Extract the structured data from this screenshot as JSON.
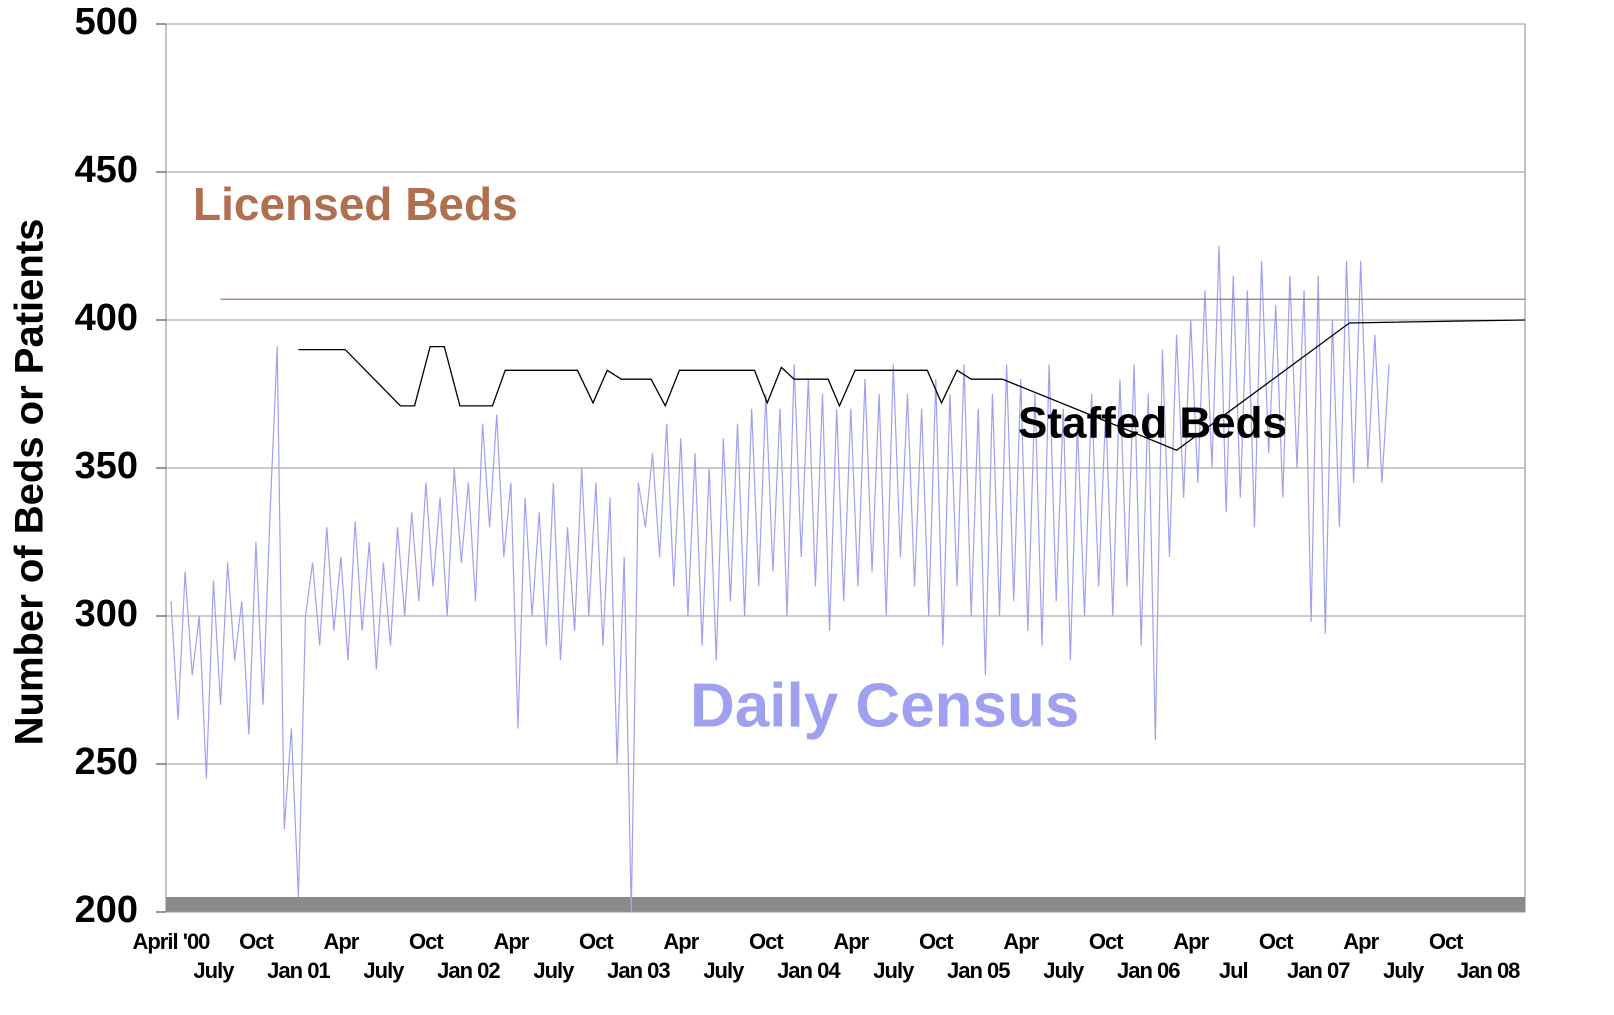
{
  "chart_data": {
    "type": "line",
    "ylabel": "Number of Beds or Patients",
    "xlim": [
      -0.35,
      95.6
    ],
    "ylim": [
      200,
      500
    ],
    "yticks": [
      200,
      250,
      300,
      350,
      400,
      450,
      500
    ],
    "grid": true,
    "xticks": [
      {
        "value": 0,
        "label": "April '00"
      },
      {
        "value": 3,
        "label": "July"
      },
      {
        "value": 6,
        "label": "Oct"
      },
      {
        "value": 9,
        "label": "Jan 01"
      },
      {
        "value": 12,
        "label": "Apr"
      },
      {
        "value": 15,
        "label": "July"
      },
      {
        "value": 18,
        "label": "Oct"
      },
      {
        "value": 21,
        "label": "Jan 02"
      },
      {
        "value": 24,
        "label": "Apr"
      },
      {
        "value": 27,
        "label": "July"
      },
      {
        "value": 30,
        "label": "Oct"
      },
      {
        "value": 33,
        "label": "Jan 03"
      },
      {
        "value": 36,
        "label": "Apr"
      },
      {
        "value": 39,
        "label": "July"
      },
      {
        "value": 42,
        "label": "Oct"
      },
      {
        "value": 45,
        "label": "Jan 04"
      },
      {
        "value": 48,
        "label": "Apr"
      },
      {
        "value": 51,
        "label": "July"
      },
      {
        "value": 54,
        "label": "Oct"
      },
      {
        "value": 57,
        "label": "Jan 05"
      },
      {
        "value": 60,
        "label": "Apr"
      },
      {
        "value": 63,
        "label": "July"
      },
      {
        "value": 66,
        "label": "Oct"
      },
      {
        "value": 69,
        "label": "Jan 06"
      },
      {
        "value": 72,
        "label": "Apr"
      },
      {
        "value": 75,
        "label": "Jul"
      },
      {
        "value": 78,
        "label": "Oct"
      },
      {
        "value": 81,
        "label": "Jan 07"
      },
      {
        "value": 84,
        "label": "Apr"
      },
      {
        "value": 87,
        "label": "July"
      },
      {
        "value": 90,
        "label": "Oct"
      },
      {
        "value": 93,
        "label": "Jan 08"
      }
    ],
    "series": [
      {
        "name": "Licensed Beds",
        "color": "#b07050",
        "x": [
          3.5,
          95.6
        ],
        "values": [
          407,
          407
        ]
      },
      {
        "name": "Staffed Beds",
        "color": "#000000",
        "x": [
          9.0,
          12.3,
          16.2,
          17.2,
          18.3,
          19.3,
          20.4,
          22.7,
          23.6,
          28.7,
          29.8,
          30.8,
          31.8,
          33.9,
          34.9,
          35.9,
          41.2,
          42.1,
          43.1,
          44.0,
          46.4,
          47.2,
          48.3,
          53.4,
          54.4,
          55.5,
          56.5,
          58.7,
          64.9,
          71.0,
          83.2,
          95.6
        ],
        "values": [
          390,
          390,
          371,
          371,
          391,
          391,
          371,
          371,
          383,
          383,
          372,
          383,
          380,
          380,
          371,
          383,
          383,
          372,
          384,
          380,
          380,
          371,
          383,
          383,
          372,
          383,
          380,
          380,
          368,
          356,
          399,
          400
        ]
      },
      {
        "name": "Daily Census",
        "color": "#a0a0f0",
        "x": [
          0,
          0.5,
          1,
          1.5,
          2,
          2.5,
          3,
          3.5,
          4,
          4.5,
          5,
          5.5,
          6,
          6.5,
          7,
          7.5,
          8,
          8.5,
          9,
          9.5,
          10,
          10.5,
          11,
          11.5,
          12,
          12.5,
          13,
          13.5,
          14,
          14.5,
          15,
          15.5,
          16,
          16.5,
          17,
          17.5,
          18,
          18.5,
          19,
          19.5,
          20,
          20.5,
          21,
          21.5,
          22,
          22.5,
          23,
          23.5,
          24,
          24.5,
          25,
          25.5,
          26,
          26.5,
          27,
          27.5,
          28,
          28.5,
          29,
          29.5,
          30,
          30.5,
          31,
          31.5,
          32,
          32.5,
          33,
          33.5,
          34,
          34.5,
          35,
          35.5,
          36,
          36.5,
          37,
          37.5,
          38,
          38.5,
          39,
          39.5,
          40,
          40.5,
          41,
          41.5,
          42,
          42.5,
          43,
          43.5,
          44,
          44.5,
          45,
          45.5,
          46,
          46.5,
          47,
          47.5,
          48,
          48.5,
          49,
          49.5,
          50,
          50.5,
          51,
          51.5,
          52,
          52.5,
          53,
          53.5,
          54,
          54.5,
          55,
          55.5,
          56,
          56.5,
          57,
          57.5,
          58,
          58.5,
          59,
          59.5,
          60,
          60.5,
          61,
          61.5,
          62,
          62.5,
          63,
          63.5,
          64,
          64.5,
          65,
          65.5,
          66,
          66.5,
          67,
          67.5,
          68,
          68.5,
          69,
          69.5,
          70,
          70.5,
          71,
          71.5,
          72,
          72.5,
          73,
          73.5,
          74,
          74.5,
          75,
          75.5,
          76,
          76.5,
          77,
          77.5,
          78,
          78.5,
          79,
          79.5,
          80,
          80.5,
          81,
          81.5,
          82,
          82.5,
          83,
          83.5,
          84,
          84.5,
          85,
          85.5,
          86
        ],
        "values": [
          305,
          265,
          315,
          280,
          300,
          245,
          312,
          270,
          318,
          285,
          305,
          260,
          325,
          270,
          335,
          391,
          228,
          262,
          205,
          300,
          318,
          290,
          330,
          295,
          320,
          285,
          332,
          295,
          325,
          282,
          318,
          290,
          330,
          300,
          335,
          305,
          345,
          310,
          340,
          300,
          350,
          318,
          345,
          305,
          365,
          330,
          368,
          320,
          345,
          262,
          340,
          300,
          335,
          290,
          345,
          285,
          330,
          295,
          350,
          300,
          345,
          290,
          340,
          250,
          320,
          200,
          345,
          330,
          355,
          320,
          365,
          310,
          360,
          300,
          355,
          290,
          350,
          285,
          360,
          305,
          365,
          300,
          370,
          310,
          375,
          315,
          370,
          300,
          385,
          320,
          380,
          310,
          375,
          295,
          370,
          305,
          370,
          310,
          380,
          315,
          375,
          300,
          385,
          320,
          375,
          310,
          370,
          300,
          380,
          290,
          375,
          310,
          385,
          300,
          370,
          280,
          375,
          300,
          385,
          305,
          380,
          295,
          375,
          290,
          385,
          305,
          370,
          285,
          365,
          300,
          375,
          310,
          370,
          300,
          380,
          310,
          385,
          290,
          375,
          258,
          390,
          320,
          395,
          340,
          400,
          345,
          410,
          350,
          425,
          335,
          415,
          340,
          410,
          330,
          420,
          355,
          405,
          340,
          415,
          350,
          410,
          298,
          415,
          294,
          400,
          330,
          420,
          345,
          420,
          350,
          395,
          345,
          385
        ]
      }
    ]
  }
}
